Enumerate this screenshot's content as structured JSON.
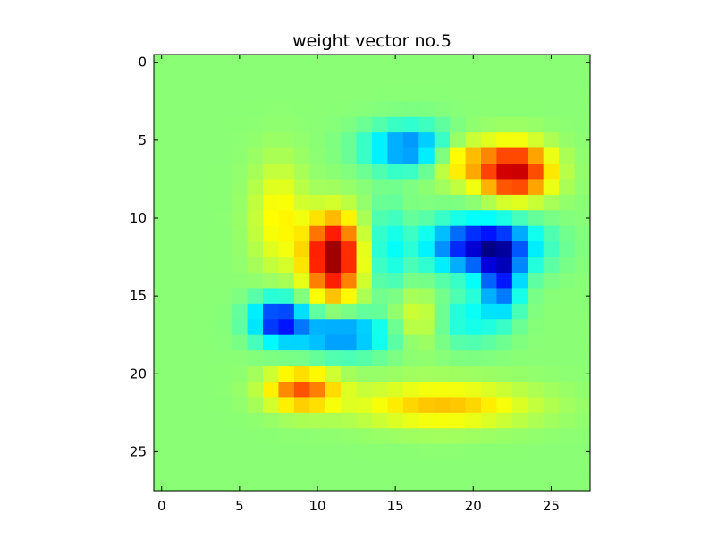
{
  "chart_data": {
    "type": "heatmap",
    "title": "weight vector no.5",
    "xlabel": "",
    "ylabel": "",
    "colormap": "jet",
    "grid": false,
    "rows": 28,
    "cols": 28,
    "xlim": [
      -0.5,
      27.5
    ],
    "ylim": [
      27.5,
      -0.5
    ],
    "x_ticks": [
      0,
      5,
      10,
      15,
      20,
      25
    ],
    "y_ticks": [
      0,
      5,
      10,
      15,
      20,
      25
    ],
    "value_range": [
      -1,
      1
    ],
    "background_value": 0.02,
    "note_features": [
      {
        "center": [
          22.6,
          7.0
        ],
        "amp": 0.85,
        "sigma": [
          1.6,
          1.2
        ]
      },
      {
        "center": [
          19.0,
          6.2
        ],
        "amp": 0.35,
        "sigma": [
          1.4,
          1.0
        ]
      },
      {
        "center": [
          11.0,
          12.5
        ],
        "amp": 0.95,
        "sigma": [
          1.2,
          1.8
        ]
      },
      {
        "center": [
          16.0,
          5.5
        ],
        "amp": -0.55,
        "sigma": [
          2.0,
          1.0
        ]
      },
      {
        "center": [
          20.5,
          11.8
        ],
        "amp": -0.85,
        "sigma": [
          2.4,
          1.2
        ]
      },
      {
        "center": [
          21.8,
          14.0
        ],
        "amp": -0.6,
        "sigma": [
          0.9,
          1.6
        ]
      },
      {
        "center": [
          7.5,
          16.5
        ],
        "amp": -0.75,
        "sigma": [
          1.2,
          1.0
        ]
      },
      {
        "center": [
          11.5,
          17.5
        ],
        "amp": -0.55,
        "sigma": [
          2.2,
          0.9
        ]
      },
      {
        "center": [
          9.0,
          21.0
        ],
        "amp": 0.55,
        "sigma": [
          1.6,
          0.9
        ]
      },
      {
        "center": [
          18.0,
          22.0
        ],
        "amp": 0.35,
        "sigma": [
          4.0,
          1.0
        ]
      },
      {
        "center": [
          7.5,
          10.0
        ],
        "amp": 0.25,
        "sigma": [
          1.2,
          2.5
        ]
      },
      {
        "center": [
          19.5,
          16.5
        ],
        "amp": -0.25,
        "sigma": [
          1.5,
          1.2
        ]
      },
      {
        "center": [
          16.5,
          16.5
        ],
        "amp": 0.2,
        "sigma": [
          1.2,
          1.2
        ]
      },
      {
        "center": [
          14.5,
          12.0
        ],
        "amp": -0.25,
        "sigma": [
          0.8,
          2.0
        ]
      }
    ]
  }
}
